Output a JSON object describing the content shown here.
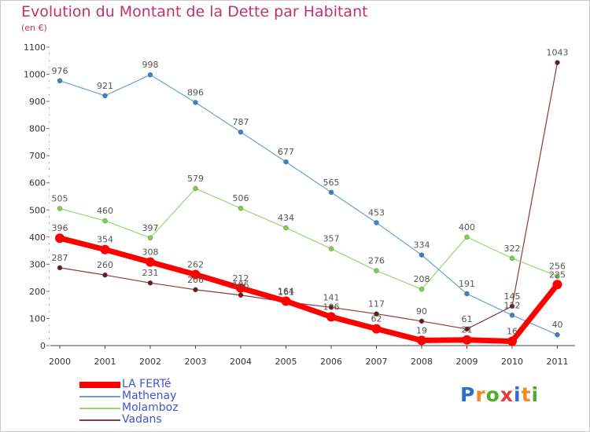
{
  "title": "Evolution du Montant de la Dette par Habitant",
  "unit": "(en €)",
  "logo": {
    "text": "Proxiti",
    "letters": [
      {
        "ch": "P",
        "color": "#2b6fd1"
      },
      {
        "ch": "r",
        "color": "#f08a1c"
      },
      {
        "ch": "o",
        "color": "#4caf27"
      },
      {
        "ch": "x",
        "color": "#e23b3b"
      },
      {
        "ch": "i",
        "color": "#2b6fd1"
      },
      {
        "ch": "t",
        "color": "#f08a1c"
      },
      {
        "ch": "i",
        "color": "#4caf27"
      }
    ]
  },
  "chart_data": {
    "type": "line",
    "x": [
      "2000",
      "2001",
      "2002",
      "2003",
      "2004",
      "2005",
      "2006",
      "2007",
      "2008",
      "2009",
      "2010",
      "2011"
    ],
    "ylim": [
      0,
      1100
    ],
    "yticks": [
      0,
      100,
      200,
      300,
      400,
      500,
      600,
      700,
      800,
      900,
      1000,
      1100
    ],
    "grid": false,
    "legend_position": "bottom-left",
    "series": [
      {
        "name": "LA FERTé",
        "color": "#ff0000",
        "marker_color": "#ff0000",
        "width": 7,
        "values": [
          396,
          354,
          308,
          262,
          212,
          164,
          106,
          62,
          19,
          21,
          16,
          225
        ],
        "labels": [
          "396",
          "354",
          "308",
          "262",
          "212",
          "164",
          "106",
          "62",
          "19",
          "21",
          "16",
          "225"
        ]
      },
      {
        "name": "Mathenay",
        "color": "#6aa1d0",
        "marker_color": "#3b82c4",
        "width": 1.2,
        "values": [
          976,
          921,
          998,
          896,
          787,
          677,
          565,
          453,
          334,
          191,
          112,
          40
        ],
        "labels": [
          "976",
          "921",
          "998",
          "896",
          "787",
          "677",
          "565",
          "453",
          "334",
          "191",
          "112",
          "40"
        ]
      },
      {
        "name": "Molamboz",
        "color": "#94d870",
        "marker_color": "#7fd04c",
        "width": 1.2,
        "values": [
          505,
          460,
          397,
          579,
          506,
          434,
          357,
          276,
          208,
          400,
          322,
          256
        ],
        "labels": [
          "505",
          "460",
          "397",
          "579",
          "506",
          "434",
          "357",
          "276",
          "208",
          "400",
          "322",
          "256"
        ]
      },
      {
        "name": "Vadans",
        "color": "#8a3a3a",
        "marker_color": "#6b1a1a",
        "width": 1.2,
        "values": [
          287,
          260,
          231,
          206,
          186,
          161,
          141,
          117,
          90,
          61,
          145,
          1043
        ],
        "labels": [
          "287",
          "260",
          "231",
          "206",
          "186",
          "161",
          "141",
          "117",
          "90",
          "61",
          "145",
          "1043"
        ]
      }
    ]
  }
}
